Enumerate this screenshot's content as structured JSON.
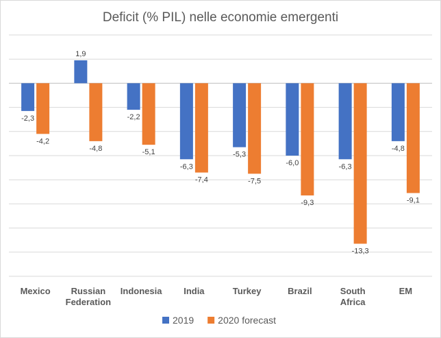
{
  "chart_data": {
    "type": "bar",
    "title": "Deficit (% PIL)  nelle economie emergenti",
    "categories": [
      [
        "Mexico"
      ],
      [
        "Russian",
        "Federation"
      ],
      [
        "Indonesia"
      ],
      [
        "India"
      ],
      [
        "Turkey"
      ],
      [
        "Brazil"
      ],
      [
        "South",
        "Africa"
      ],
      [
        "EM"
      ]
    ],
    "series": [
      {
        "name": "2019",
        "color": "#4472c4",
        "values": [
          -2.3,
          1.9,
          -2.2,
          -6.3,
          -5.3,
          -6.0,
          -6.3,
          -4.8
        ],
        "labels": [
          "-2,3",
          "1,9",
          "-2,2",
          "-6,3",
          "-5,3",
          "-6,0",
          "-6,3",
          "-4,8"
        ]
      },
      {
        "name": "2020 forecast",
        "color": "#ed7d31",
        "values": [
          -4.2,
          -4.8,
          -5.1,
          -7.4,
          -7.5,
          -9.3,
          -13.3,
          -9.1
        ],
        "labels": [
          "-4,2",
          "-4,8",
          "-5,1",
          "-7,4",
          "-7,5",
          "-9,3",
          "-13,3",
          "-9,1"
        ]
      }
    ],
    "xlabel": "",
    "ylabel": "",
    "ylim": [
      -16,
      4
    ],
    "grid": true,
    "y_tick_labels_shown": false,
    "legend_position": "bottom"
  }
}
